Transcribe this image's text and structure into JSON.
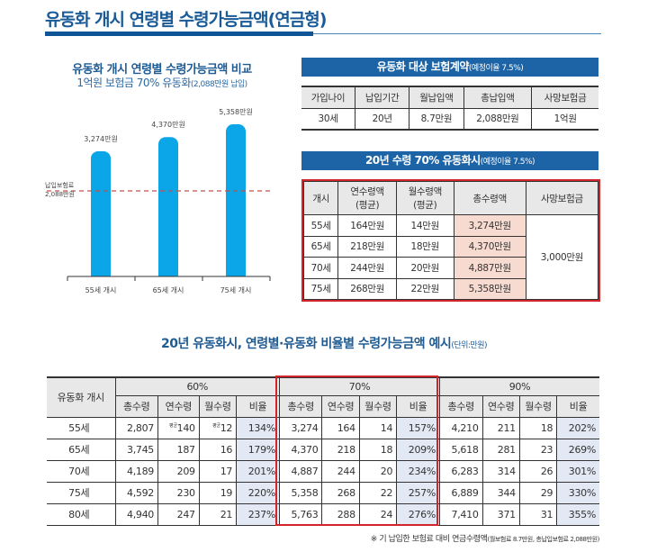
{
  "title": "유동화 개시 연령별 수령가능금액(연금형)",
  "chart_data": {
    "type": "bar",
    "title": "유동화 개시 연령별 수령가능금액 비교",
    "subtitle": "1억원 보험금 70% 유동화",
    "subtitle_note": "(2,088만원 납입)",
    "categories": [
      "55세 개시",
      "65세 개시",
      "75세 개시"
    ],
    "values": [
      3274,
      4370,
      5358
    ],
    "value_labels": [
      "3,274만원",
      "4,370만원",
      "5,358만원"
    ],
    "reference_line": {
      "value": 2088,
      "label1": "납입보험료",
      "label2": "2,088만원",
      "color": "#c0504d",
      "style": "dashed"
    },
    "bar_color": "#0aa6e8",
    "grid": false
  },
  "contract": {
    "header": "유동화 대상 보험계약",
    "header_note": "(예정이율 7.5%)",
    "columns": [
      "가입나이",
      "납입기간",
      "월납입액",
      "총납입액",
      "사망보험금"
    ],
    "row": [
      "30세",
      "20년",
      "8.7만원",
      "2,088만원",
      "1억원"
    ]
  },
  "liquidation": {
    "header": "20년 수령 70% 유동화시",
    "header_note": "(예정이율 7.5%)",
    "columns": [
      "개시",
      "연수령액\n(평균)",
      "월수령액\n(평균)",
      "총수령액",
      "사망보험금"
    ],
    "rows": [
      [
        "55세",
        "164만원",
        "14만원",
        "3,274만원"
      ],
      [
        "65세",
        "218만원",
        "18만원",
        "4,370만원"
      ],
      [
        "70세",
        "244만원",
        "20만원",
        "4,887만원"
      ],
      [
        "75세",
        "268만원",
        "22만원",
        "5,358만원"
      ]
    ],
    "death_benefit": "3,000만원"
  },
  "bottom": {
    "title": "20년 유동화시, 연령별·유동화 비율별 수령가능금액 예시",
    "title_note": "(단위:만원)",
    "row_header": "유동화 개시",
    "groups": [
      "60%",
      "70%",
      "90%"
    ],
    "subcolumns": [
      "총수령",
      "연수령",
      "월수령",
      "비율"
    ],
    "avg_mark": "평균",
    "rows": [
      {
        "age": "55세",
        "v": [
          "2,807",
          "140",
          "12",
          "134%",
          "3,274",
          "164",
          "14",
          "157%",
          "4,210",
          "211",
          "18",
          "202%"
        ]
      },
      {
        "age": "65세",
        "v": [
          "3,745",
          "187",
          "16",
          "179%",
          "4,370",
          "218",
          "18",
          "209%",
          "5,618",
          "281",
          "23",
          "269%"
        ]
      },
      {
        "age": "70세",
        "v": [
          "4,189",
          "209",
          "17",
          "201%",
          "4,887",
          "244",
          "20",
          "234%",
          "6,283",
          "314",
          "26",
          "301%"
        ]
      },
      {
        "age": "75세",
        "v": [
          "4,592",
          "230",
          "19",
          "220%",
          "5,358",
          "268",
          "22",
          "257%",
          "6,889",
          "344",
          "29",
          "330%"
        ]
      },
      {
        "age": "80세",
        "v": [
          "4,940",
          "247",
          "21",
          "237%",
          "5,763",
          "288",
          "24",
          "276%",
          "7,410",
          "371",
          "31",
          "355%"
        ]
      }
    ],
    "footnote": "※ 기 납입한 보험료 대비 연금수령액",
    "footnote_note": "(월보험료 8.7만원, 총납입보험료 2,088만원)"
  },
  "colors": {
    "primary": "#1d64a6",
    "highlight": "#d4242b",
    "pink": "#f8dbd0",
    "ratio": "#e3e9f4"
  }
}
